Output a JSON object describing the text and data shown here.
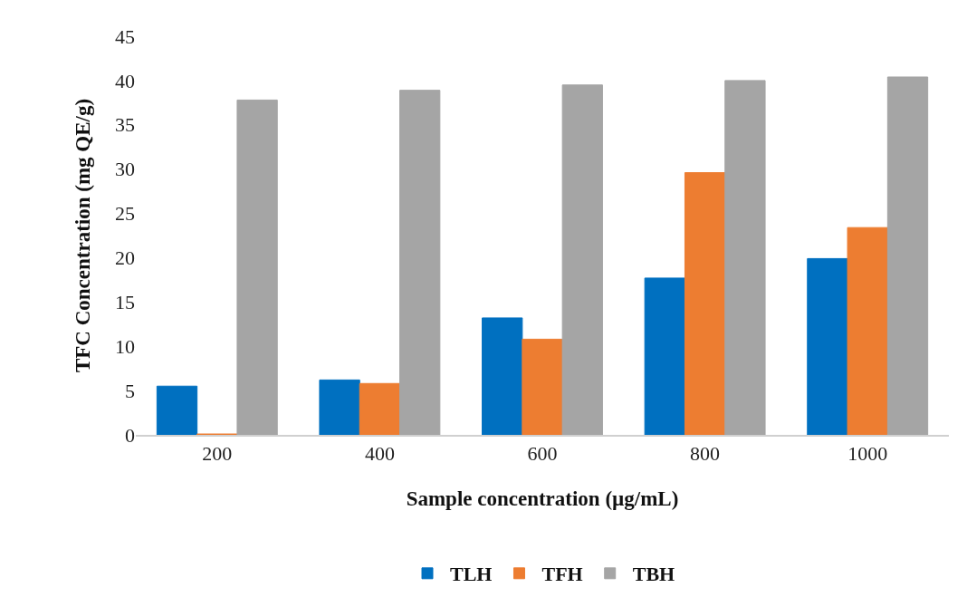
{
  "chart_data": {
    "type": "bar",
    "xlabel": "Sample concentration (µg/mL)",
    "ylabel": "TFC Concentration (mg QE/g)",
    "categories": [
      "200",
      "400",
      "600",
      "800",
      "1000"
    ],
    "series": [
      {
        "name": "TLH",
        "color": "#0070c0",
        "values": [
          5.5,
          6.2,
          13.2,
          17.7,
          19.9
        ]
      },
      {
        "name": "TFH",
        "color": "#ed7d31",
        "values": [
          0.1,
          5.8,
          10.8,
          29.6,
          23.4
        ]
      },
      {
        "name": "TBH",
        "color": "#a5a5a5",
        "values": [
          37.8,
          38.9,
          39.5,
          40.0,
          40.4
        ]
      }
    ],
    "ylim": [
      0,
      45
    ],
    "yticks": [
      0,
      5,
      10,
      15,
      20,
      25,
      30,
      35,
      40,
      45
    ],
    "grid": false,
    "legend": "bottom"
  }
}
